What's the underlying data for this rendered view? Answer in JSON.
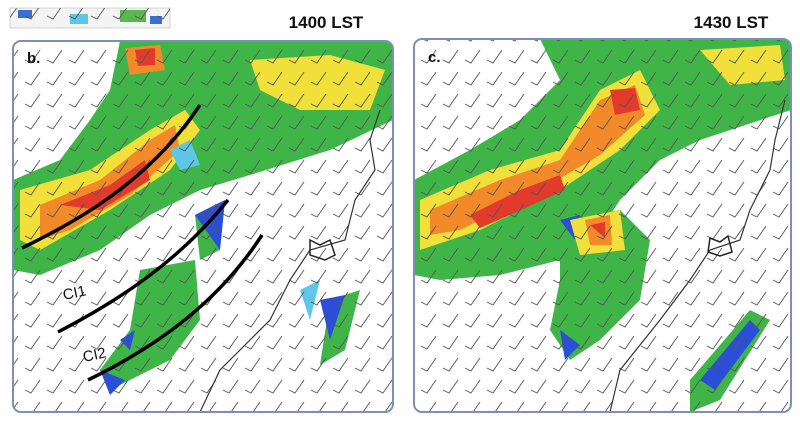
{
  "panels": [
    {
      "time": "1400 LST",
      "label": "b.",
      "annotations": [
        "CI1",
        "CI2"
      ]
    },
    {
      "time": "1430 LST",
      "label": "c."
    }
  ]
}
